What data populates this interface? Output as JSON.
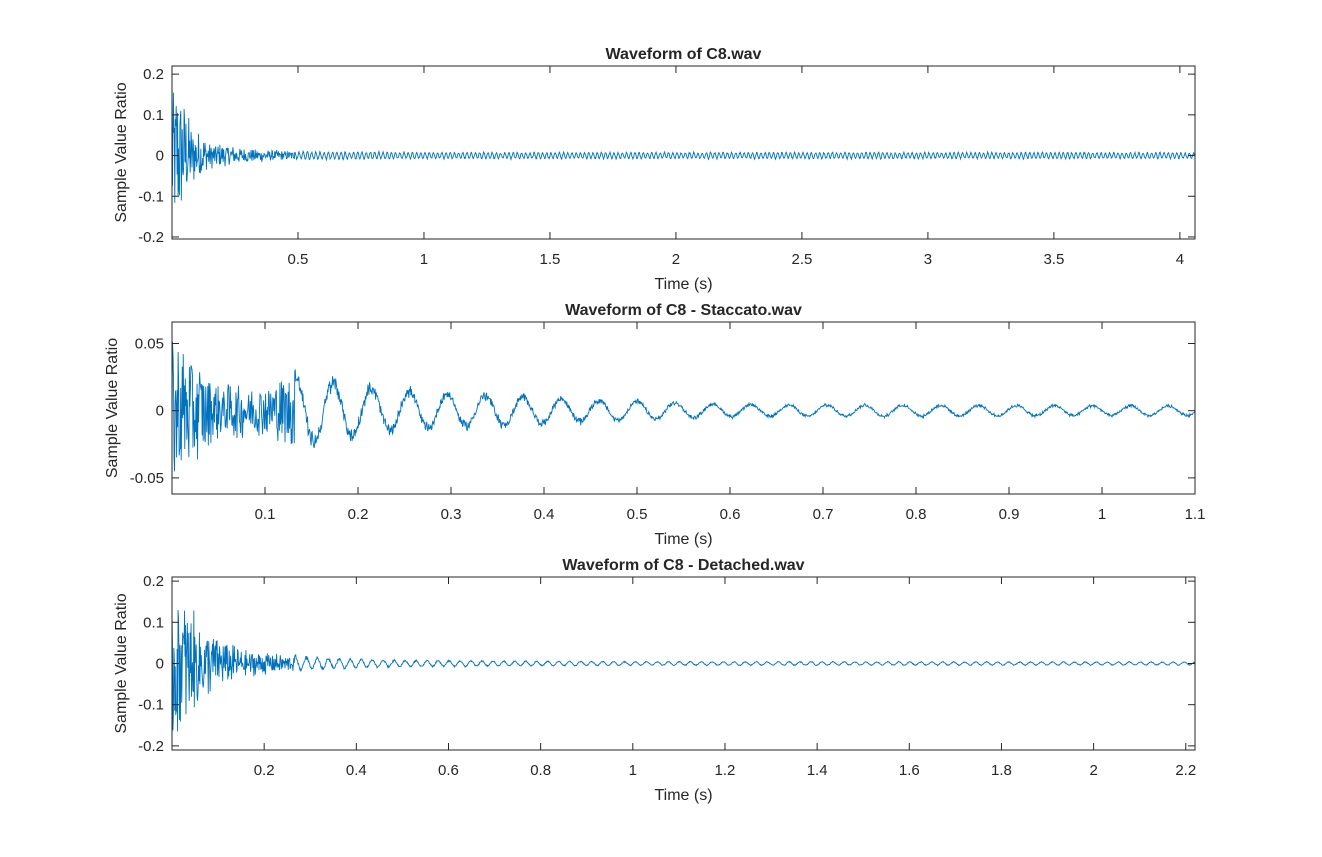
{
  "chart_data": [
    {
      "type": "line",
      "title": "Waveform of C8.wav",
      "xlabel": "Time (s)",
      "ylabel": "Sample Value Ratio",
      "xlim": [
        0.0,
        4.06
      ],
      "ylim": [
        -0.205,
        0.22
      ],
      "xticks": [
        0.5,
        1,
        1.5,
        2,
        2.5,
        3,
        3.5,
        4
      ],
      "xtick_labels": [
        "0.5",
        "1",
        "1.5",
        "2",
        "2.5",
        "3",
        "3.5",
        "4"
      ],
      "yticks": [
        -0.2,
        -0.1,
        0,
        0.1,
        0.2
      ],
      "ytick_labels": [
        "-0.2",
        "-0.1",
        "0",
        "0.1",
        "0.2"
      ],
      "grid": false,
      "series_color": "#0072BD",
      "envelope": [
        {
          "x": 0.0,
          "amp": 0.21
        },
        {
          "x": 0.03,
          "amp": 0.17
        },
        {
          "x": 0.08,
          "amp": 0.08
        },
        {
          "x": 0.15,
          "amp": 0.035
        },
        {
          "x": 0.3,
          "amp": 0.018
        },
        {
          "x": 0.5,
          "amp": 0.01
        },
        {
          "x": 1.0,
          "amp": 0.008
        },
        {
          "x": 2.0,
          "amp": 0.008
        },
        {
          "x": 4.06,
          "amp": 0.008
        }
      ]
    },
    {
      "type": "line",
      "title": "Waveform of C8 - Staccato.wav",
      "xlabel": "Time (s)",
      "ylabel": "Sample Value Ratio",
      "xlim": [
        0.0,
        1.1
      ],
      "ylim": [
        -0.062,
        0.066
      ],
      "xticks": [
        0.1,
        0.2,
        0.3,
        0.4,
        0.5,
        0.6,
        0.7,
        0.8,
        0.9,
        1,
        1.1
      ],
      "xtick_labels": [
        "0.1",
        "0.2",
        "0.3",
        "0.4",
        "0.5",
        "0.6",
        "0.7",
        "0.8",
        "0.9",
        "1",
        "1.1"
      ],
      "yticks": [
        -0.05,
        0,
        0.05
      ],
      "ytick_labels": [
        "-0.05",
        "0",
        "0.05"
      ],
      "grid": false,
      "series_color": "#0072BD",
      "envelope": [
        {
          "x": 0.0,
          "amp": 0.062
        },
        {
          "x": 0.02,
          "amp": 0.045
        },
        {
          "x": 0.05,
          "amp": 0.022
        },
        {
          "x": 0.1,
          "amp": 0.02
        },
        {
          "x": 0.13,
          "amp": 0.03
        },
        {
          "x": 0.2,
          "amp": 0.02
        },
        {
          "x": 0.3,
          "amp": 0.014
        },
        {
          "x": 0.45,
          "amp": 0.009
        },
        {
          "x": 0.6,
          "amp": 0.005
        },
        {
          "x": 1.1,
          "amp": 0.004
        }
      ]
    },
    {
      "type": "line",
      "title": "Waveform of C8 - Detached.wav",
      "xlabel": "Time (s)",
      "ylabel": "Sample Value Ratio",
      "xlim": [
        0.0,
        2.22
      ],
      "ylim": [
        -0.21,
        0.21
      ],
      "xticks": [
        0.2,
        0.4,
        0.6,
        0.8,
        1,
        1.2,
        1.4,
        1.6,
        1.8,
        2,
        2.2
      ],
      "xtick_labels": [
        "0.2",
        "0.4",
        "0.6",
        "0.8",
        "1",
        "1.2",
        "1.4",
        "1.6",
        "1.8",
        "2",
        "2.2"
      ],
      "yticks": [
        -0.2,
        -0.1,
        0,
        0.1,
        0.2
      ],
      "ytick_labels": [
        "-0.2",
        "-0.1",
        "0",
        "0.1",
        "0.2"
      ],
      "grid": false,
      "series_color": "#0072BD",
      "envelope": [
        {
          "x": 0.0,
          "amp": 0.21
        },
        {
          "x": 0.03,
          "amp": 0.16
        },
        {
          "x": 0.07,
          "amp": 0.09
        },
        {
          "x": 0.15,
          "amp": 0.035
        },
        {
          "x": 0.3,
          "amp": 0.015
        },
        {
          "x": 0.5,
          "amp": 0.008
        },
        {
          "x": 1.0,
          "amp": 0.005
        },
        {
          "x": 2.22,
          "amp": 0.004
        }
      ]
    }
  ]
}
